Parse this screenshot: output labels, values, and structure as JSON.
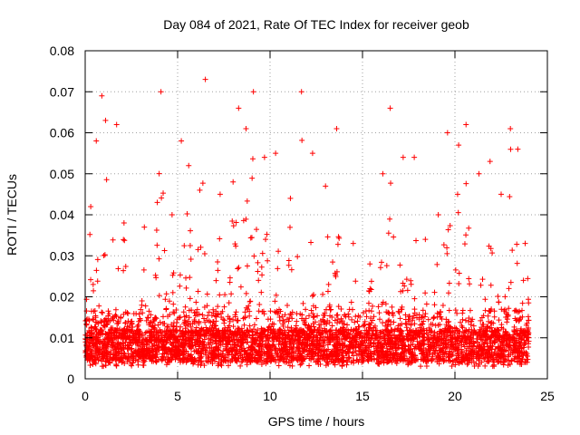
{
  "chart_data": {
    "type": "scatter",
    "title": "Day 084 of 2021, Rate Of TEC Index for receiver geob",
    "xlabel": "GPS time / hours",
    "ylabel": "ROTI / TECUs",
    "xlim": [
      0,
      25
    ],
    "ylim": [
      0,
      0.08
    ],
    "xticks": [
      0,
      5,
      10,
      15,
      20,
      25
    ],
    "yticks": [
      0,
      0.01,
      0.02,
      0.03,
      0.04,
      0.05,
      0.06,
      0.07,
      0.08
    ],
    "ytick_labels": [
      "0",
      "0.01",
      "0.02",
      "0.03",
      "0.04",
      "0.05",
      "0.06",
      "0.07",
      "0.08"
    ],
    "xtick_labels": [
      "0",
      "5",
      "10",
      "15",
      "20",
      "25"
    ],
    "grid": true,
    "marker": "+",
    "color": "#ff0000",
    "series": [
      {
        "x_range": [
          0,
          24
        ],
        "baseline": 0.008,
        "peaks": [
          {
            "x": 0.3,
            "y": 0.042
          },
          {
            "x": 0.6,
            "y": 0.058
          },
          {
            "x": 0.9,
            "y": 0.069
          },
          {
            "x": 1.1,
            "y": 0.063
          },
          {
            "x": 1.7,
            "y": 0.062
          },
          {
            "x": 2.1,
            "y": 0.038
          },
          {
            "x": 3.2,
            "y": 0.037
          },
          {
            "x": 3.9,
            "y": 0.043
          },
          {
            "x": 4.1,
            "y": 0.07
          },
          {
            "x": 4.7,
            "y": 0.04
          },
          {
            "x": 5.2,
            "y": 0.058
          },
          {
            "x": 5.6,
            "y": 0.052
          },
          {
            "x": 6.2,
            "y": 0.046
          },
          {
            "x": 6.5,
            "y": 0.073
          },
          {
            "x": 7.3,
            "y": 0.045
          },
          {
            "x": 8.0,
            "y": 0.048
          },
          {
            "x": 8.3,
            "y": 0.066
          },
          {
            "x": 8.7,
            "y": 0.061
          },
          {
            "x": 9.1,
            "y": 0.07
          },
          {
            "x": 9.7,
            "y": 0.054
          },
          {
            "x": 10.3,
            "y": 0.055
          },
          {
            "x": 11.1,
            "y": 0.044
          },
          {
            "x": 11.7,
            "y": 0.07
          },
          {
            "x": 12.3,
            "y": 0.055
          },
          {
            "x": 13.0,
            "y": 0.047
          },
          {
            "x": 13.6,
            "y": 0.061
          },
          {
            "x": 14.5,
            "y": 0.033
          },
          {
            "x": 15.4,
            "y": 0.028
          },
          {
            "x": 16.1,
            "y": 0.05
          },
          {
            "x": 16.5,
            "y": 0.066
          },
          {
            "x": 17.2,
            "y": 0.054
          },
          {
            "x": 17.8,
            "y": 0.054
          },
          {
            "x": 18.4,
            "y": 0.034
          },
          {
            "x": 19.1,
            "y": 0.04
          },
          {
            "x": 19.6,
            "y": 0.06
          },
          {
            "x": 20.2,
            "y": 0.057
          },
          {
            "x": 20.6,
            "y": 0.062
          },
          {
            "x": 21.3,
            "y": 0.05
          },
          {
            "x": 21.9,
            "y": 0.053
          },
          {
            "x": 22.5,
            "y": 0.045
          },
          {
            "x": 23.0,
            "y": 0.061
          },
          {
            "x": 23.4,
            "y": 0.056
          },
          {
            "x": 23.8,
            "y": 0.033
          }
        ]
      }
    ]
  }
}
